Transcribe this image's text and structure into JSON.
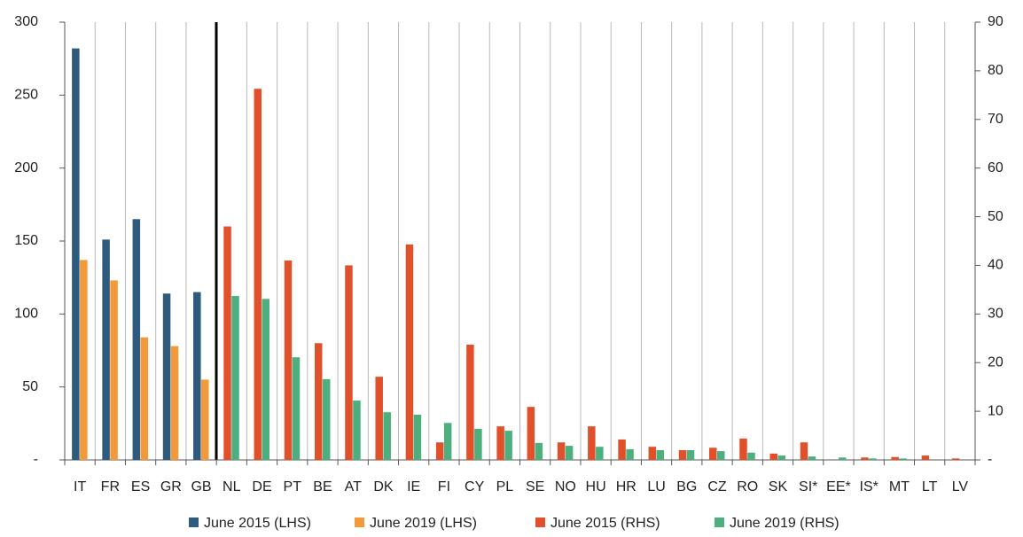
{
  "chart_data": {
    "type": "bar",
    "categories": [
      "IT",
      "FR",
      "ES",
      "GR",
      "GB",
      "NL",
      "DE",
      "PT",
      "BE",
      "AT",
      "DK",
      "IE",
      "FI",
      "CY",
      "PL",
      "SE",
      "NO",
      "HU",
      "HR",
      "LU",
      "BG",
      "CZ",
      "RO",
      "SK",
      "SI*",
      "EE*",
      "IS*",
      "MT",
      "LT",
      "LV"
    ],
    "series": [
      {
        "name": "June 2015 (LHS)",
        "color": "#2e5a7e",
        "values": [
          282,
          151,
          165,
          114,
          115,
          null,
          null,
          null,
          null,
          null,
          null,
          null,
          null,
          null,
          null,
          null,
          null,
          null,
          null,
          null,
          null,
          null,
          null,
          null,
          null,
          null,
          null,
          null,
          null,
          null
        ]
      },
      {
        "name": "June 2019 (LHS)",
        "color": "#f29a3a",
        "values": [
          137,
          123,
          84,
          78,
          55,
          null,
          null,
          null,
          null,
          null,
          null,
          null,
          null,
          null,
          null,
          null,
          null,
          null,
          null,
          null,
          null,
          null,
          null,
          null,
          null,
          null,
          null,
          null,
          null,
          null
        ]
      },
      {
        "name": "June 2015 (RHS)",
        "color": "#e0502a",
        "axis": "y2",
        "values": [
          null,
          null,
          null,
          null,
          null,
          48,
          76.3,
          41,
          24,
          40,
          17.1,
          44.3,
          3.6,
          23.7,
          6.9,
          10.9,
          3.6,
          6.9,
          4.2,
          2.7,
          2,
          2.5,
          4.4,
          1.3,
          3.6,
          null,
          0.5,
          0.6,
          0.9,
          0.3
        ]
      },
      {
        "name": "June 2019 (RHS)",
        "color": "#4caf7d",
        "axis": "y2",
        "values": [
          null,
          null,
          null,
          null,
          null,
          33.7,
          33.1,
          21.1,
          16.6,
          12.2,
          9.8,
          9.3,
          7.6,
          6.4,
          6,
          3.5,
          2.9,
          2.7,
          2.2,
          2,
          2,
          1.8,
          1.5,
          0.9,
          0.7,
          0.5,
          0.3,
          0.3,
          null,
          null
        ]
      }
    ],
    "ylim": [
      0,
      300
    ],
    "yticks": [
      {
        "value": 0,
        "label": "-"
      },
      50,
      100,
      150,
      200,
      250,
      300
    ],
    "y2lim": [
      0,
      90
    ],
    "y2ticks": [
      {
        "value": 0,
        "label": "-"
      },
      10,
      20,
      30,
      40,
      50,
      60,
      70,
      80,
      90
    ]
  }
}
